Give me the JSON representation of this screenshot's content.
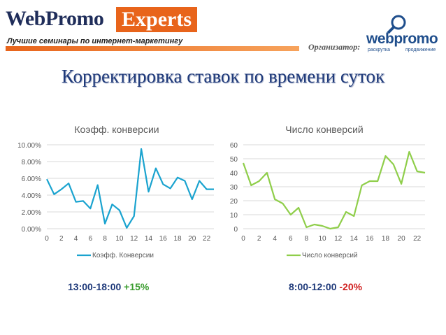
{
  "header": {
    "brand_part1": "WebPromo",
    "brand_part2": "Experts",
    "tagline": "Лучшие семинары по интернет-маркетингу",
    "organizer_label": "Организатор:",
    "organizer_brand": "webpromo",
    "organizer_sub1": "раскрутка",
    "organizer_sub2": "продвижение"
  },
  "slide_title": "Корректировка ставок по времени суток",
  "chart_data": [
    {
      "type": "line",
      "title": "Коэфф. конверсии",
      "legend": "bottom",
      "series": [
        {
          "name": "Коэфф. Конверсии",
          "color": "#1aa3cf",
          "x": [
            0,
            1,
            2,
            3,
            4,
            5,
            6,
            7,
            8,
            9,
            10,
            11,
            12,
            13,
            14,
            15,
            16,
            17,
            18,
            19,
            20,
            21,
            22,
            23
          ],
          "values": [
            5.9,
            4.1,
            4.7,
            5.4,
            3.2,
            3.3,
            2.4,
            5.2,
            0.6,
            2.9,
            2.2,
            0.1,
            1.5,
            9.5,
            4.4,
            7.2,
            5.3,
            4.8,
            6.1,
            5.7,
            3.5,
            5.7,
            4.7,
            4.7
          ]
        }
      ],
      "xticks": [
        "0",
        "2",
        "4",
        "6",
        "8",
        "10",
        "12",
        "14",
        "16",
        "18",
        "20",
        "22"
      ],
      "yticks": [
        "0.00%",
        "2.00%",
        "4.00%",
        "6.00%",
        "8.00%",
        "10.00%"
      ],
      "ylim": [
        0,
        10
      ],
      "grid": true
    },
    {
      "type": "line",
      "title": "Число конверсий",
      "legend": "bottom",
      "series": [
        {
          "name": "Число конверсий",
          "color": "#8fce4a",
          "x": [
            0,
            1,
            2,
            3,
            4,
            5,
            6,
            7,
            8,
            9,
            10,
            11,
            12,
            13,
            14,
            15,
            16,
            17,
            18,
            19,
            20,
            21,
            22,
            23
          ],
          "values": [
            47,
            31,
            34,
            40,
            21,
            18,
            10,
            15,
            1,
            3,
            2,
            0,
            1,
            12,
            9,
            31,
            34,
            34,
            52,
            46,
            32,
            55,
            41,
            40
          ]
        }
      ],
      "xticks": [
        "0",
        "2",
        "4",
        "6",
        "8",
        "10",
        "12",
        "14",
        "16",
        "18",
        "20",
        "22"
      ],
      "yticks": [
        "0",
        "10",
        "20",
        "30",
        "40",
        "50",
        "60"
      ],
      "ylim": [
        0,
        60
      ],
      "grid": true
    }
  ],
  "captions": {
    "left_range": "13:00-18:00",
    "left_change": "+15%",
    "right_range": "8:00-12:00",
    "right_change": "-20%"
  }
}
